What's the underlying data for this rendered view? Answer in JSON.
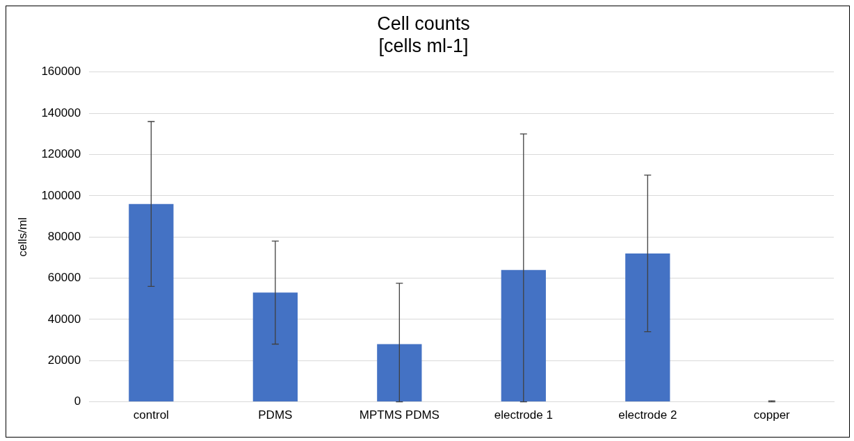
{
  "chart_data": {
    "type": "bar",
    "title": "Cell counts\n[cells ml-1]",
    "ylabel": "cells/ml",
    "categories": [
      "control",
      "PDMS",
      "MPTMS PDMS",
      "electrode 1",
      "electrode 2",
      "copper"
    ],
    "values": [
      96000,
      53000,
      28000,
      64000,
      72000,
      0
    ],
    "errors": [
      [
        56000,
        136000
      ],
      [
        28000,
        78000
      ],
      [
        0,
        57500
      ],
      [
        0,
        130000
      ],
      [
        34000,
        110000
      ],
      [
        0,
        500
      ]
    ],
    "color": "#4472c4",
    "ylim": [
      0,
      160000
    ],
    "yticks": [
      0,
      20000,
      40000,
      60000,
      80000,
      100000,
      120000,
      140000,
      160000
    ],
    "grid": "y",
    "legend": false
  }
}
